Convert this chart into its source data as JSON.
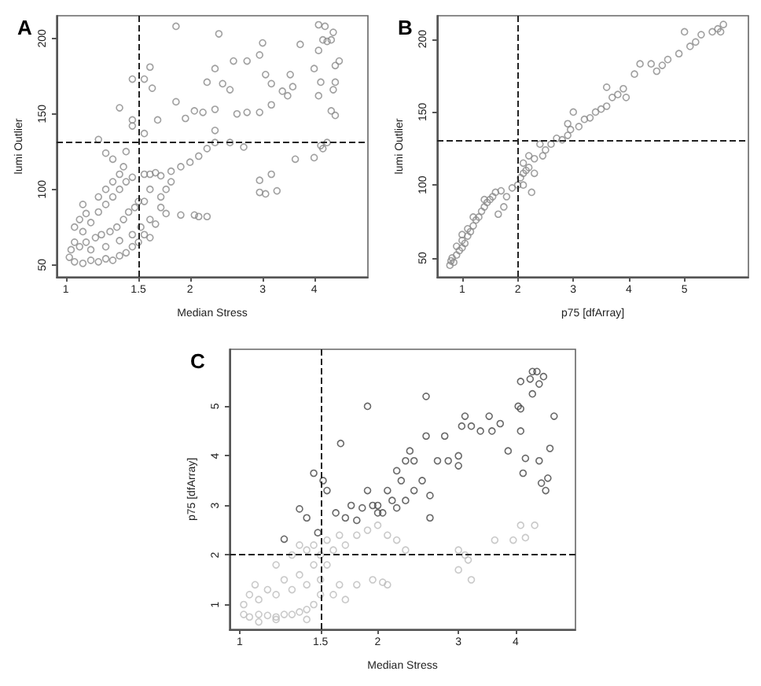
{
  "chart_data": [
    {
      "type": "scatter",
      "title": "A",
      "xlabel": "Median Stress",
      "ylabel": "lumi Outlier",
      "log": "x",
      "grid": false,
      "marker": "circle",
      "xlim": [
        0.95,
        5.4
      ],
      "xticks": [
        1,
        1.5,
        2,
        3,
        4
      ],
      "ylim": [
        42,
        215
      ],
      "yticks": [
        50,
        100,
        150,
        200
      ],
      "ref_lines": [
        {
          "axis": "x",
          "value": 1.5,
          "color": "#222222",
          "line_style": "dashed"
        },
        {
          "axis": "y",
          "value": 131,
          "color": "#222222",
          "line_style": "dashed"
        }
      ],
      "series": [
        {
          "color": "#888888",
          "x": [
            1.85,
            2.35,
            4.1,
            4.25,
            4.45,
            4.2,
            4.3,
            4.4,
            4.6,
            4.5,
            4.1,
            3.7,
            3.0,
            2.95,
            2.55,
            2.75,
            2.3,
            1.6,
            1.45,
            1.55,
            1.62,
            3.5,
            3.05,
            2.2,
            2.4,
            2.5,
            3.15,
            3.35,
            3.55,
            4.0,
            4.15,
            4.5,
            4.1,
            4.45,
            1.85,
            1.35,
            2.05,
            2.15,
            2.3,
            2.6,
            2.75,
            2.95,
            3.15,
            3.45,
            4.4,
            4.5,
            1.55,
            1.67,
            1.95,
            2.3,
            2.5,
            2.7,
            3.6,
            4.0,
            4.15,
            4.3,
            4.2,
            2.95,
            3.05,
            3.15,
            3.25,
            2.95,
            2.05,
            2.1,
            2.2,
            1.9,
            1.75,
            1.65,
            1.6,
            1.55,
            1.55,
            1.6,
            1.65,
            1.7,
            1.8,
            1.9,
            2.0,
            2.1,
            2.2,
            2.3,
            1.45,
            1.4,
            1.35,
            1.3,
            1.25,
            1.2,
            1.15,
            1.1,
            1.05,
            1.02,
            1.05,
            1.1,
            1.15,
            1.2,
            1.25,
            1.3,
            1.35,
            1.4,
            1.45,
            1.5,
            1.03,
            1.08,
            1.12,
            1.18,
            1.22,
            1.28,
            1.33,
            1.38,
            1.42,
            1.47,
            1.5,
            1.05,
            1.08,
            1.12,
            1.2,
            1.25,
            1.3,
            1.35,
            1.38,
            1.3,
            1.4,
            1.45,
            1.45,
            1.2,
            1.25,
            1.1,
            1.15,
            1.25,
            1.35,
            1.45,
            1.52,
            1.6,
            1.7,
            1.75,
            1.8,
            1.7,
            1.55,
            1.6
          ],
          "values": [
            208,
            203,
            209,
            208,
            204,
            199,
            198,
            199,
            185,
            182,
            192,
            196,
            197,
            189,
            185,
            185,
            180,
            181,
            173,
            173,
            167,
            176,
            176,
            171,
            170,
            166,
            170,
            165,
            168,
            180,
            171,
            171,
            162,
            166,
            158,
            154,
            152,
            151,
            153,
            150,
            151,
            151,
            156,
            162,
            152,
            149,
            137,
            146,
            147,
            139,
            131,
            128,
            120,
            121,
            129,
            131,
            127,
            106,
            97,
            110,
            99,
            98,
            83,
            82,
            82,
            83,
            84,
            77,
            68,
            70,
            110,
            110,
            111,
            109,
            112,
            115,
            118,
            122,
            127,
            131,
            108,
            105,
            100,
            95,
            90,
            85,
            78,
            72,
            65,
            55,
            52,
            51,
            53,
            52,
            54,
            53,
            56,
            58,
            62,
            65,
            60,
            62,
            65,
            68,
            70,
            72,
            75,
            80,
            85,
            88,
            92,
            75,
            80,
            84,
            95,
            100,
            105,
            110,
            115,
            120,
            125,
            142,
            146,
            133,
            124,
            90,
            60,
            62,
            66,
            70,
            75,
            80,
            95,
            100,
            105,
            88,
            92,
            100
          ]
        }
      ]
    },
    {
      "type": "scatter",
      "title": "B",
      "xlabel": "p75 [dfArray]",
      "ylabel": "lumi Outlier",
      "grid": false,
      "marker": "circle",
      "xlim": [
        0.55,
        6.15
      ],
      "xticks": [
        1,
        2,
        3,
        4,
        5
      ],
      "ylim": [
        37,
        216
      ],
      "yticks": [
        50,
        100,
        150,
        200
      ],
      "ref_lines": [
        {
          "axis": "x",
          "value": 2,
          "color": "#222222",
          "line_style": "dashed"
        },
        {
          "axis": "y",
          "value": 131,
          "color": "#222222",
          "line_style": "dashed"
        }
      ],
      "series": [
        {
          "color": "#888888",
          "x": [
            0.78,
            0.8,
            0.82,
            0.85,
            0.9,
            0.95,
            1.0,
            1.0,
            1.05,
            1.1,
            1.1,
            1.15,
            1.2,
            1.25,
            1.3,
            1.35,
            1.4,
            1.45,
            1.5,
            1.55,
            1.6,
            1.7,
            1.8,
            1.65,
            1.9,
            2.0,
            2.05,
            2.1,
            2.15,
            2.2,
            2.3,
            2.1,
            2.2,
            2.3,
            2.45,
            2.5,
            2.4,
            2.6,
            2.7,
            2.8,
            2.9,
            2.95,
            3.0,
            2.9,
            3.1,
            3.2,
            3.3,
            3.4,
            3.5,
            3.6,
            3.7,
            3.6,
            3.8,
            3.9,
            3.95,
            4.1,
            4.2,
            4.4,
            4.5,
            4.6,
            4.7,
            4.9,
            5.0,
            5.1,
            5.2,
            5.3,
            5.5,
            5.6,
            5.7,
            5.65,
            0.9,
            1.0,
            1.2,
            1.4,
            2.25,
            2.1,
            1.75
          ],
          "values": [
            45,
            48,
            50,
            47,
            52,
            55,
            57,
            62,
            60,
            65,
            70,
            68,
            72,
            76,
            78,
            82,
            85,
            88,
            90,
            92,
            95,
            96,
            92,
            80,
            98,
            100,
            105,
            108,
            110,
            112,
            108,
            115,
            120,
            118,
            120,
            124,
            128,
            128,
            132,
            131,
            134,
            138,
            150,
            142,
            140,
            145,
            146,
            150,
            152,
            154,
            160,
            167,
            162,
            166,
            160,
            176,
            183,
            183,
            178,
            182,
            186,
            190,
            205,
            195,
            198,
            203,
            205,
            207,
            210,
            205,
            58,
            66,
            78,
            90,
            95,
            100,
            85
          ]
        }
      ]
    },
    {
      "type": "scatter",
      "title": "C",
      "xlabel": "Median Stress",
      "ylabel": "p75 [dfArray]",
      "log": "x",
      "grid": false,
      "marker": "circle",
      "xlim": [
        0.95,
        5.4
      ],
      "xticks": [
        1,
        1.5,
        2,
        3,
        4
      ],
      "ylim": [
        0.5,
        6.15
      ],
      "yticks": [
        1,
        2,
        3,
        4,
        5
      ],
      "ref_lines": [
        {
          "axis": "x",
          "value": 1.5,
          "color": "#222222",
          "line_style": "dashed"
        },
        {
          "axis": "y",
          "value": 2,
          "color": "#222222",
          "line_style": "dashed"
        }
      ],
      "series": [
        {
          "color": "#bbbbbb",
          "x": [
            1.02,
            1.05,
            1.1,
            1.15,
            1.2,
            1.25,
            1.3,
            1.35,
            1.4,
            1.45,
            1.02,
            1.05,
            1.08,
            1.1,
            1.15,
            1.2,
            1.25,
            1.3,
            1.35,
            1.4,
            1.45,
            1.5,
            1.5,
            1.55,
            1.6,
            1.2,
            1.3,
            1.35,
            1.4,
            1.45,
            1.55,
            1.65,
            1.7,
            1.8,
            1.9,
            2.0,
            2.1,
            2.2,
            2.3,
            1.6,
            1.65,
            1.7,
            1.8,
            1.95,
            2.05,
            2.1,
            3.0,
            3.0,
            3.1,
            3.15,
            3.2,
            3.6,
            3.95,
            4.1,
            4.2,
            4.4,
            1.1,
            1.2,
            1.4,
            1.5
          ],
          "values": [
            0.8,
            0.75,
            0.8,
            0.78,
            0.75,
            0.8,
            0.8,
            0.85,
            0.9,
            1.0,
            1.0,
            1.2,
            1.4,
            1.1,
            1.3,
            1.2,
            1.5,
            1.3,
            1.6,
            1.4,
            1.8,
            1.5,
            2.0,
            1.8,
            2.1,
            1.8,
            2.0,
            2.2,
            2.1,
            2.2,
            2.3,
            2.4,
            2.2,
            2.4,
            2.5,
            2.6,
            2.4,
            2.3,
            2.1,
            1.2,
            1.4,
            1.1,
            1.4,
            1.5,
            1.45,
            1.4,
            1.7,
            2.1,
            2.0,
            1.9,
            1.5,
            2.3,
            2.3,
            2.6,
            2.35,
            2.6,
            0.65,
            0.7,
            0.7,
            1.2
          ]
        },
        {
          "color": "#444444",
          "x": [
            1.9,
            2.55,
            1.66,
            1.45,
            1.52,
            1.35,
            1.4,
            1.25,
            1.48,
            1.55,
            1.62,
            1.7,
            1.75,
            1.8,
            1.85,
            1.9,
            2.0,
            2.05,
            2.1,
            2.15,
            2.2,
            2.25,
            2.3,
            2.35,
            2.4,
            2.5,
            2.55,
            2.6,
            2.6,
            2.7,
            2.8,
            2.85,
            3.0,
            3.0,
            3.05,
            3.1,
            3.2,
            3.35,
            3.5,
            3.55,
            3.7,
            3.85,
            4.05,
            4.1,
            4.1,
            4.15,
            4.2,
            4.3,
            4.35,
            4.45,
            4.35,
            4.5,
            4.6,
            4.5,
            4.55,
            4.65,
            4.7,
            4.75,
            4.85,
            4.1,
            2.2,
            2.3,
            2.4,
            2.0,
            1.95
          ],
          "values": [
            5.0,
            5.2,
            4.25,
            3.65,
            3.5,
            2.93,
            2.75,
            2.32,
            2.45,
            3.3,
            2.85,
            2.75,
            3.0,
            2.7,
            2.95,
            3.3,
            3.0,
            2.85,
            3.3,
            3.1,
            3.7,
            3.5,
            3.9,
            4.1,
            3.9,
            3.5,
            4.4,
            3.2,
            2.75,
            3.9,
            4.4,
            3.9,
            4.0,
            3.8,
            4.6,
            4.8,
            4.6,
            4.5,
            4.8,
            4.5,
            4.65,
            4.1,
            5.0,
            5.5,
            4.5,
            3.65,
            3.95,
            5.55,
            5.7,
            5.7,
            5.25,
            5.45,
            5.6,
            3.9,
            3.45,
            3.3,
            3.55,
            4.15,
            4.8,
            4.95,
            2.95,
            3.1,
            3.3,
            2.85,
            3.0
          ]
        }
      ]
    }
  ]
}
